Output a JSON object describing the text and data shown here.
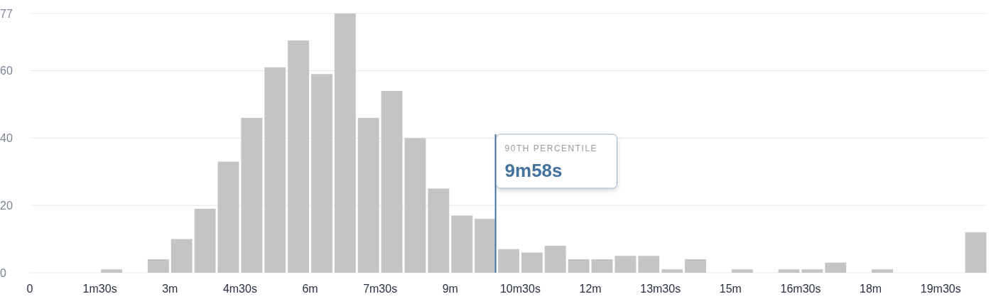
{
  "chart_data": {
    "type": "histogram",
    "color": "#c4c4c4",
    "bins": [
      0,
      0.5,
      1,
      1.5,
      2,
      2.5,
      3,
      3.5,
      4,
      4.5,
      5,
      5.5,
      6,
      6.5,
      7,
      7.5,
      8,
      8.5,
      9,
      9.5,
      10,
      10.5,
      11,
      11.5,
      12,
      12.5,
      13,
      13.5,
      14,
      14.5,
      15,
      15.5,
      16,
      16.5,
      17,
      17.5,
      18,
      18.5,
      19,
      19.5,
      20,
      20.5
    ],
    "values": [
      0,
      0,
      0,
      1,
      0,
      4,
      10,
      19,
      33,
      46,
      61,
      69,
      59,
      77,
      46,
      54,
      40,
      25,
      17,
      16,
      7,
      6,
      8,
      4,
      4,
      5,
      5,
      1,
      4,
      0,
      1,
      0,
      1,
      1,
      3,
      0,
      1,
      0,
      0,
      0,
      12
    ],
    "xlim": [
      0,
      20.5
    ],
    "xticks": [
      0,
      {
        "value": 1.5,
        "label": "1m30s"
      },
      {
        "value": 3,
        "label": "3m"
      },
      {
        "value": 4.5,
        "label": "4m30s"
      },
      {
        "value": 6,
        "label": "6m"
      },
      {
        "value": 7.5,
        "label": "7m30s"
      },
      {
        "value": 9,
        "label": "9m"
      },
      {
        "value": 10.5,
        "label": "10m30s"
      },
      {
        "value": 12,
        "label": "12m"
      },
      {
        "value": 13.5,
        "label": "13m30s"
      },
      {
        "value": 15,
        "label": "15m"
      },
      {
        "value": 16.5,
        "label": "16m30s"
      },
      {
        "value": 18,
        "label": "18m"
      },
      {
        "value": 19.5,
        "label": "19m30s"
      }
    ],
    "ylim": [
      0,
      77
    ],
    "yticks": [
      0,
      20,
      40,
      60,
      77
    ],
    "grid": "y",
    "ref_lines": [
      {
        "axis": "x",
        "value": 9.97,
        "label": "90TH PERCENTILE",
        "color": "#44729c"
      }
    ],
    "annotations": [
      "9m58s"
    ]
  }
}
